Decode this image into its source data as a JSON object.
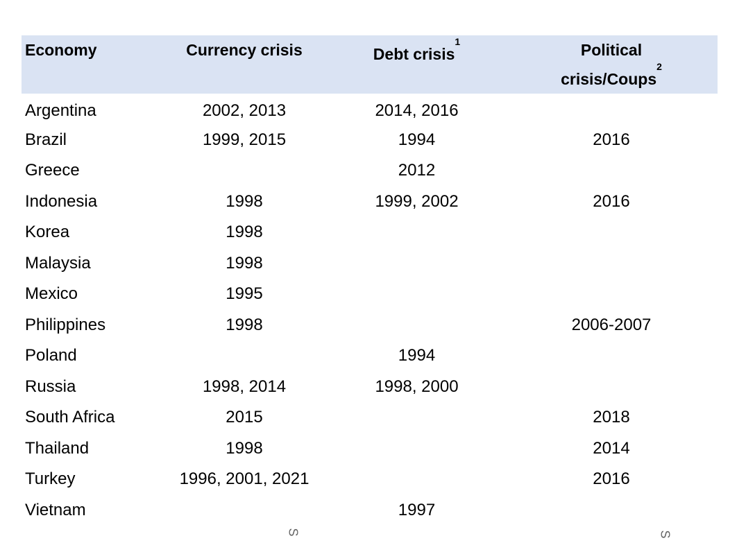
{
  "headers": {
    "economy": "Economy",
    "currency": "Currency crisis",
    "debt": "Debt crisis",
    "debt_note": "1",
    "political_line1": "Political",
    "political_line2": "crisis/Coups",
    "political_note": "2"
  },
  "rows": [
    {
      "economy": "Argentina",
      "currency": "2002, 2013",
      "debt": "2014, 2016",
      "political": ""
    },
    {
      "economy": "Brazil",
      "currency": "1999, 2015",
      "debt": "1994",
      "political": "2016"
    },
    {
      "economy": "Greece",
      "currency": "",
      "debt": "2012",
      "political": ""
    },
    {
      "economy": "Indonesia",
      "currency": "1998",
      "debt": "1999, 2002",
      "political": "2016"
    },
    {
      "economy": "Korea",
      "currency": "1998",
      "debt": "",
      "political": ""
    },
    {
      "economy": "Malaysia",
      "currency": "1998",
      "debt": "",
      "political": ""
    },
    {
      "economy": "Mexico",
      "currency": "1995",
      "debt": "",
      "political": ""
    },
    {
      "economy": "Philippines",
      "currency": "1998",
      "debt": "",
      "political": "2006-2007"
    },
    {
      "economy": "Poland",
      "currency": "",
      "debt": "1994",
      "political": ""
    },
    {
      "economy": "Russia",
      "currency": "1998, 2014",
      "debt": "1998, 2000",
      "political": ""
    },
    {
      "economy": "South Africa",
      "currency": "2015",
      "debt": "",
      "political": "2018"
    },
    {
      "economy": "Thailand",
      "currency": "1998",
      "debt": "",
      "political": "2014"
    },
    {
      "economy": "Turkey",
      "currency": "1996, 2001, 2021",
      "debt": "",
      "political": "2016"
    },
    {
      "economy": "Vietnam",
      "currency": "",
      "debt": "1997",
      "political": ""
    }
  ],
  "stray_marks": [
    "S",
    "S"
  ]
}
